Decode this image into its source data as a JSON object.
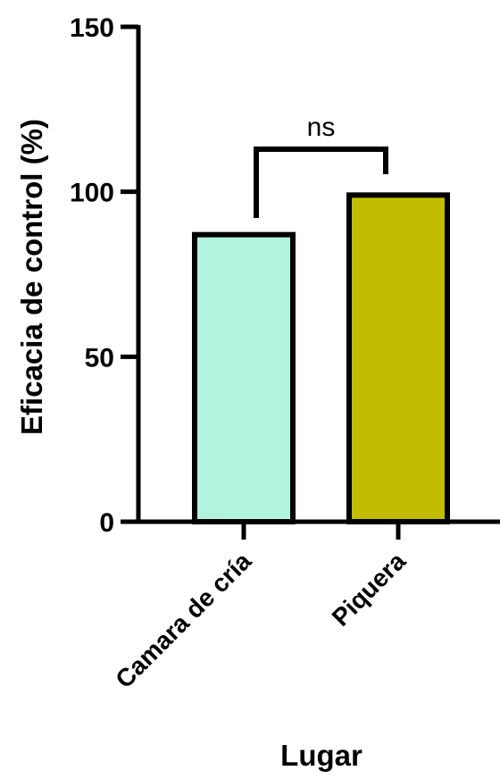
{
  "chart_data": {
    "type": "bar",
    "title": "",
    "xlabel": "Lugar",
    "ylabel": "Eficacia de control  (%)",
    "categories": [
      "Camara de cría",
      "Piquera"
    ],
    "values": [
      87,
      99
    ],
    "colors": [
      "#b2f3df",
      "#c2bd00"
    ],
    "ylim": [
      0,
      150
    ],
    "yticks": [
      0,
      50,
      100,
      150
    ],
    "grid": false,
    "annotations": [
      {
        "type": "significance-bracket",
        "between": [
          "Camara de cría",
          "Piquera"
        ],
        "label": "ns"
      }
    ]
  }
}
